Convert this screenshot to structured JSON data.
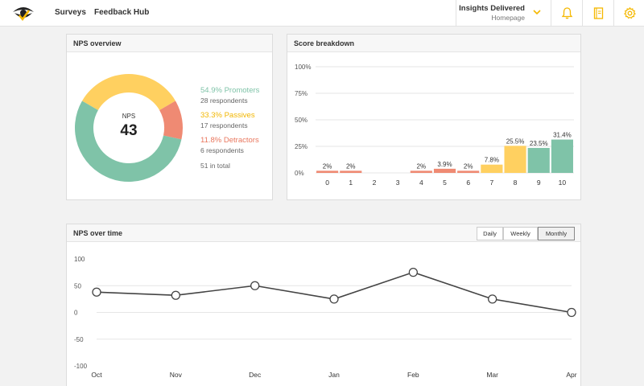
{
  "nav": {
    "items": [
      "Surveys",
      "Feedback Hub"
    ],
    "project_name": "Insights Delivered",
    "project_sub": "Homepage",
    "icons": [
      "bell-icon",
      "notebook-icon",
      "gear-icon"
    ],
    "accent": "#f5b800"
  },
  "nps_overview": {
    "title": "NPS overview",
    "center_label": "NPS",
    "center_value": "43",
    "segments": [
      {
        "pct": "54.9% Promoters",
        "resp": "28 respondents",
        "color": "#7fc3a8",
        "value": 54.9
      },
      {
        "pct": "33.3% Passives",
        "resp": "17 respondents",
        "color": "#ffd060",
        "value": 33.3
      },
      {
        "pct": "11.8% Detractors",
        "resp": "6 respondents",
        "color": "#ef8a73",
        "value": 11.8
      }
    ],
    "total": "51 in total"
  },
  "score_breakdown": {
    "title": "Score breakdown",
    "chart_data": {
      "type": "bar",
      "categories": [
        "0",
        "1",
        "2",
        "3",
        "4",
        "5",
        "6",
        "7",
        "8",
        "9",
        "10"
      ],
      "values": [
        2,
        2,
        0,
        0,
        2,
        3.9,
        2,
        7.8,
        25.5,
        23.5,
        31.4
      ],
      "labels": [
        "2%",
        "2%",
        "",
        "",
        "2%",
        "3.9%",
        "2%",
        "7.8%",
        "25.5%",
        "23.5%",
        "31.4%"
      ],
      "colors": [
        "#ef8a73",
        "#ef8a73",
        "#ef8a73",
        "#ef8a73",
        "#ef8a73",
        "#ef8a73",
        "#ef8a73",
        "#ffd060",
        "#ffd060",
        "#7fc3a8",
        "#7fc3a8"
      ],
      "ylim": [
        0,
        100
      ],
      "yticks": [
        "100%",
        "75%",
        "50%",
        "25%",
        "0%"
      ],
      "grid": true
    }
  },
  "nps_over_time": {
    "title": "NPS over time",
    "toggles": [
      "Daily",
      "Weekly",
      "Monthly"
    ],
    "active_toggle": "Monthly",
    "chart_data": {
      "type": "line",
      "categories": [
        "Oct",
        "Nov",
        "Dec",
        "Jan",
        "Feb",
        "Mar",
        "Apr"
      ],
      "values": [
        38,
        32,
        50,
        25,
        75,
        25,
        0
      ],
      "ylim": [
        -100,
        100
      ],
      "yticks": [
        "100",
        "50",
        "0",
        "-50",
        "-100"
      ],
      "grid": true
    }
  }
}
